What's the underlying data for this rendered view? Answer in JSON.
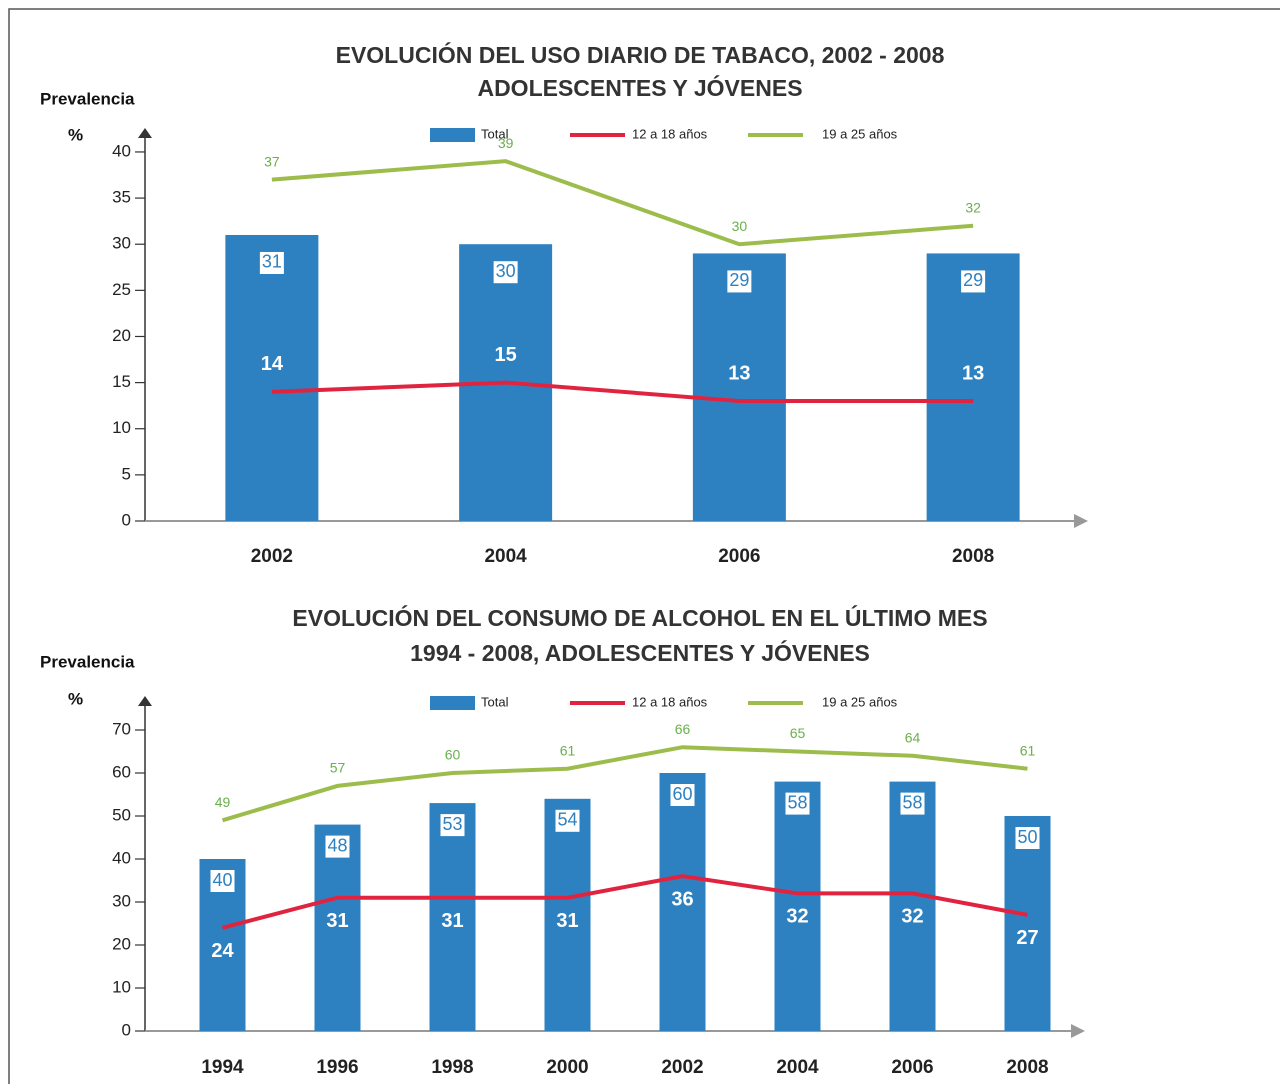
{
  "chart_data": [
    {
      "type": "bar",
      "title": [
        "EVOLUCIÓN DEL USO DIARIO DE TABACO, 2002 - 2008",
        "ADOLESCENTES Y JÓVENES"
      ],
      "y_label": "Prevalencia",
      "y_unit": "%",
      "categories": [
        "2002",
        "2004",
        "2006",
        "2008"
      ],
      "ylim": [
        0,
        42
      ],
      "yticks": [
        0,
        5,
        10,
        15,
        20,
        25,
        30,
        35,
        40
      ],
      "series": [
        {
          "name": "Total",
          "type": "bar",
          "color": "#2e81c0",
          "values": [
            31,
            30,
            29,
            29
          ]
        },
        {
          "name": "12 a 18 años",
          "type": "line",
          "color": "#e0243f",
          "values": [
            14,
            15,
            13,
            13
          ]
        },
        {
          "name": "19 a 25 años",
          "type": "line",
          "color": "#9cbd4c",
          "values": [
            37,
            39,
            30,
            32
          ]
        }
      ]
    },
    {
      "type": "bar",
      "title": [
        "EVOLUCIÓN DEL CONSUMO DE ALCOHOL EN EL ÚLTIMO MES",
        "1994 - 2008, ADOLESCENTES Y JÓVENES"
      ],
      "y_label": "Prevalencia",
      "y_unit": "%",
      "categories": [
        "1994",
        "1996",
        "1998",
        "2000",
        "2002",
        "2004",
        "2006",
        "2008"
      ],
      "ylim": [
        0,
        75
      ],
      "yticks": [
        0,
        10,
        20,
        30,
        40,
        50,
        60,
        70
      ],
      "series": [
        {
          "name": "Total",
          "type": "bar",
          "color": "#2e81c0",
          "values": [
            40,
            48,
            53,
            54,
            60,
            58,
            58,
            50
          ]
        },
        {
          "name": "12 a 18 años",
          "type": "line",
          "color": "#e0243f",
          "values": [
            24,
            31,
            31,
            31,
            36,
            32,
            32,
            27
          ]
        },
        {
          "name": "19 a 25 años",
          "type": "line",
          "color": "#9cbd4c",
          "values": [
            49,
            57,
            60,
            61,
            66,
            65,
            64,
            61
          ]
        }
      ]
    }
  ]
}
